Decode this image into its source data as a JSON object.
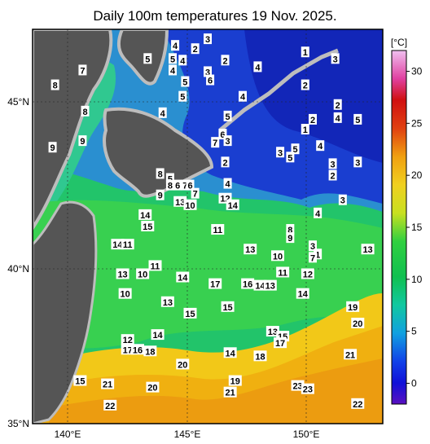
{
  "title": "Daily 100m temperatures 19 Nov. 2025.",
  "colorbar": {
    "unit": "[°C]",
    "ticks": [
      "0",
      "5",
      "10",
      "15",
      "20",
      "25",
      "30"
    ],
    "range": [
      -2,
      32
    ]
  },
  "axes": {
    "x_labels": [
      "140°E",
      "145°E",
      "150°E"
    ],
    "y_labels": [
      "45°N",
      "40°N",
      "35°N"
    ],
    "lon_range": [
      139,
      153
    ],
    "lat_range": [
      35,
      47
    ]
  },
  "colors": {
    "land": "#555555",
    "ice_coast": "#bdbdbd",
    "cold": "#1a2cc8",
    "cool": "#2aa0d8",
    "mid": "#22cc55",
    "warm": "#f2c818"
  },
  "temp_labels": [
    {
      "v": "3",
      "lon": 146.0,
      "lat": 46.7
    },
    {
      "v": "2",
      "lon": 145.5,
      "lat": 46.4
    },
    {
      "v": "4",
      "lon": 144.7,
      "lat": 46.5
    },
    {
      "v": "5",
      "lon": 143.6,
      "lat": 46.1
    },
    {
      "v": "5",
      "lon": 144.6,
      "lat": 46.1
    },
    {
      "v": "4",
      "lon": 145.0,
      "lat": 46.05
    },
    {
      "v": "4",
      "lon": 144.6,
      "lat": 45.75
    },
    {
      "v": "2",
      "lon": 146.7,
      "lat": 46.05
    },
    {
      "v": "3",
      "lon": 146.0,
      "lat": 45.7
    },
    {
      "v": "6",
      "lon": 146.1,
      "lat": 45.45
    },
    {
      "v": "5",
      "lon": 145.1,
      "lat": 45.4
    },
    {
      "v": "4",
      "lon": 148.0,
      "lat": 45.85
    },
    {
      "v": "1",
      "lon": 149.9,
      "lat": 46.3
    },
    {
      "v": "3",
      "lon": 151.1,
      "lat": 46.1
    },
    {
      "v": "2",
      "lon": 149.9,
      "lat": 45.3
    },
    {
      "v": "7",
      "lon": 141.0,
      "lat": 45.75
    },
    {
      "v": "8",
      "lon": 139.9,
      "lat": 45.3
    },
    {
      "v": "5",
      "lon": 145.0,
      "lat": 44.95
    },
    {
      "v": "4",
      "lon": 147.4,
      "lat": 44.95
    },
    {
      "v": "8",
      "lon": 141.1,
      "lat": 44.5
    },
    {
      "v": "4",
      "lon": 144.2,
      "lat": 44.45
    },
    {
      "v": "5",
      "lon": 146.8,
      "lat": 44.35
    },
    {
      "v": "2",
      "lon": 151.2,
      "lat": 44.7
    },
    {
      "v": "4",
      "lon": 151.2,
      "lat": 44.3
    },
    {
      "v": "2",
      "lon": 150.2,
      "lat": 44.25
    },
    {
      "v": "5",
      "lon": 152.0,
      "lat": 44.25
    },
    {
      "v": "1",
      "lon": 149.9,
      "lat": 43.95
    },
    {
      "v": "6",
      "lon": 146.6,
      "lat": 43.8
    },
    {
      "v": "3",
      "lon": 146.8,
      "lat": 43.6
    },
    {
      "v": "7",
      "lon": 146.3,
      "lat": 43.55
    },
    {
      "v": "4",
      "lon": 150.5,
      "lat": 43.45
    },
    {
      "v": "3",
      "lon": 148.9,
      "lat": 43.25
    },
    {
      "v": "5",
      "lon": 149.5,
      "lat": 43.35
    },
    {
      "v": "5",
      "lon": 149.3,
      "lat": 43.1
    },
    {
      "v": "9",
      "lon": 139.8,
      "lat": 43.4
    },
    {
      "v": "9",
      "lon": 141.0,
      "lat": 43.6
    },
    {
      "v": "2",
      "lon": 146.7,
      "lat": 42.95
    },
    {
      "v": "3",
      "lon": 151.0,
      "lat": 42.9
    },
    {
      "v": "3",
      "lon": 152.0,
      "lat": 42.95
    },
    {
      "v": "2",
      "lon": 151.0,
      "lat": 42.55
    },
    {
      "v": "8",
      "lon": 144.1,
      "lat": 42.6
    },
    {
      "v": "5",
      "lon": 144.5,
      "lat": 42.45
    },
    {
      "v": "8",
      "lon": 144.5,
      "lat": 42.25
    },
    {
      "v": "6",
      "lon": 144.8,
      "lat": 42.25
    },
    {
      "v": "7",
      "lon": 145.1,
      "lat": 42.25
    },
    {
      "v": "6",
      "lon": 145.3,
      "lat": 42.25
    },
    {
      "v": "7",
      "lon": 145.5,
      "lat": 42.0
    },
    {
      "v": "4",
      "lon": 146.8,
      "lat": 42.3
    },
    {
      "v": "9",
      "lon": 144.1,
      "lat": 41.95
    },
    {
      "v": "13",
      "lon": 144.9,
      "lat": 41.75
    },
    {
      "v": "10",
      "lon": 145.3,
      "lat": 41.65
    },
    {
      "v": "12",
      "lon": 146.7,
      "lat": 41.85
    },
    {
      "v": "14",
      "lon": 147.0,
      "lat": 41.65
    },
    {
      "v": "3",
      "lon": 151.4,
      "lat": 41.8
    },
    {
      "v": "14",
      "lon": 143.5,
      "lat": 41.35
    },
    {
      "v": "15",
      "lon": 143.6,
      "lat": 41.0
    },
    {
      "v": "4",
      "lon": 150.4,
      "lat": 41.4
    },
    {
      "v": "11",
      "lon": 146.4,
      "lat": 40.9
    },
    {
      "v": "8",
      "lon": 149.3,
      "lat": 40.9
    },
    {
      "v": "9",
      "lon": 149.3,
      "lat": 40.65
    },
    {
      "v": "14",
      "lon": 142.4,
      "lat": 40.45
    },
    {
      "v": "11",
      "lon": 142.8,
      "lat": 40.45
    },
    {
      "v": "13",
      "lon": 147.7,
      "lat": 40.3
    },
    {
      "v": "3",
      "lon": 150.2,
      "lat": 40.4
    },
    {
      "v": "1",
      "lon": 150.4,
      "lat": 40.15
    },
    {
      "v": "7",
      "lon": 150.2,
      "lat": 40.05
    },
    {
      "v": "10",
      "lon": 148.8,
      "lat": 40.1
    },
    {
      "v": "13",
      "lon": 152.4,
      "lat": 40.3
    },
    {
      "v": "11",
      "lon": 143.9,
      "lat": 39.8
    },
    {
      "v": "13",
      "lon": 142.6,
      "lat": 39.55
    },
    {
      "v": "10",
      "lon": 143.4,
      "lat": 39.55
    },
    {
      "v": "14",
      "lon": 145.0,
      "lat": 39.45
    },
    {
      "v": "11",
      "lon": 149.0,
      "lat": 39.6
    },
    {
      "v": "12",
      "lon": 150.0,
      "lat": 39.55
    },
    {
      "v": "17",
      "lon": 146.3,
      "lat": 39.25
    },
    {
      "v": "16",
      "lon": 147.6,
      "lat": 39.25
    },
    {
      "v": "14",
      "lon": 148.1,
      "lat": 39.2
    },
    {
      "v": "13",
      "lon": 148.5,
      "lat": 39.2
    },
    {
      "v": "10",
      "lon": 142.7,
      "lat": 38.95
    },
    {
      "v": "14",
      "lon": 149.8,
      "lat": 38.95
    },
    {
      "v": "13",
      "lon": 144.4,
      "lat": 38.7
    },
    {
      "v": "15",
      "lon": 146.8,
      "lat": 38.55
    },
    {
      "v": "15",
      "lon": 145.3,
      "lat": 38.35
    },
    {
      "v": "19",
      "lon": 151.8,
      "lat": 38.55
    },
    {
      "v": "20",
      "lon": 152.0,
      "lat": 38.05
    },
    {
      "v": "14",
      "lon": 144.0,
      "lat": 37.7
    },
    {
      "v": "13",
      "lon": 148.6,
      "lat": 37.8
    },
    {
      "v": "15",
      "lon": 149.0,
      "lat": 37.65
    },
    {
      "v": "17",
      "lon": 148.9,
      "lat": 37.45
    },
    {
      "v": "12",
      "lon": 142.8,
      "lat": 37.55
    },
    {
      "v": "17",
      "lon": 142.8,
      "lat": 37.25
    },
    {
      "v": "16",
      "lon": 143.2,
      "lat": 37.25
    },
    {
      "v": "18",
      "lon": 143.7,
      "lat": 37.2
    },
    {
      "v": "14",
      "lon": 146.9,
      "lat": 37.15
    },
    {
      "v": "18",
      "lon": 148.1,
      "lat": 37.05
    },
    {
      "v": "21",
      "lon": 151.7,
      "lat": 37.1
    },
    {
      "v": "20",
      "lon": 145.0,
      "lat": 36.8
    },
    {
      "v": "15",
      "lon": 140.9,
      "lat": 36.3
    },
    {
      "v": "21",
      "lon": 142.0,
      "lat": 36.2
    },
    {
      "v": "20",
      "lon": 143.8,
      "lat": 36.1
    },
    {
      "v": "19",
      "lon": 147.1,
      "lat": 36.3
    },
    {
      "v": "21",
      "lon": 146.9,
      "lat": 35.95
    },
    {
      "v": "23",
      "lon": 149.6,
      "lat": 36.15
    },
    {
      "v": "23",
      "lon": 150.0,
      "lat": 36.05
    },
    {
      "v": "22",
      "lon": 142.1,
      "lat": 35.55
    },
    {
      "v": "22",
      "lon": 152.0,
      "lat": 35.6
    }
  ]
}
